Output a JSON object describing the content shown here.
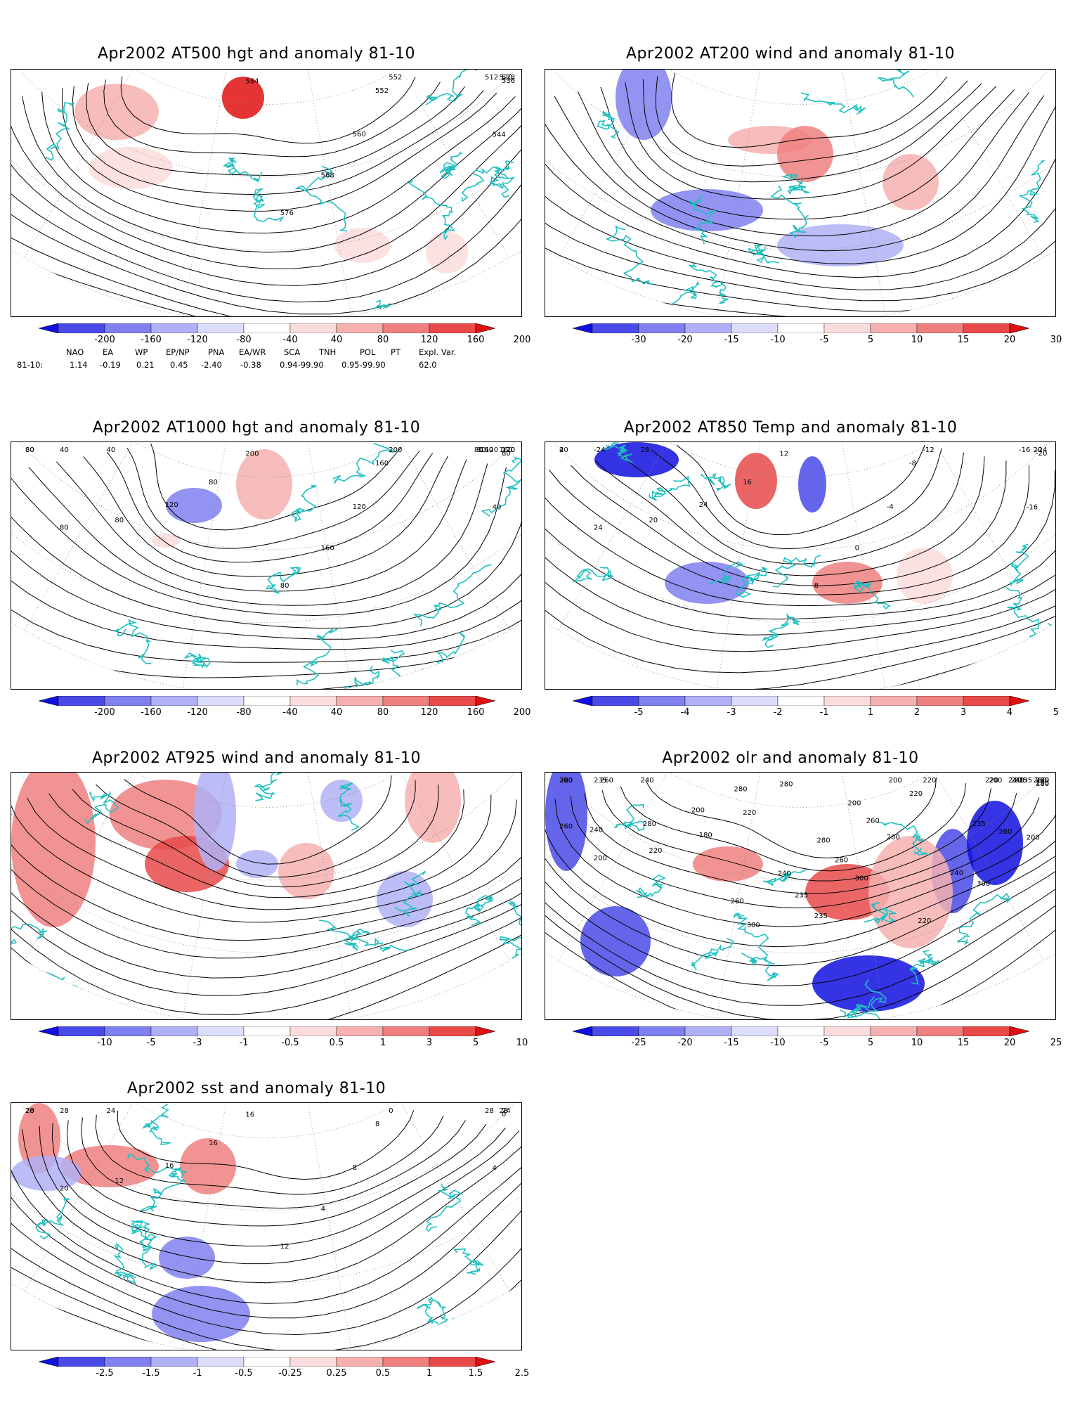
{
  "panels": [
    {
      "id": "p1",
      "title": "Apr2002 AT500 hgt and anomaly 81-10",
      "contour_labels": [
        "512",
        "520",
        "528",
        "536",
        "544",
        "552",
        "552",
        "560",
        "568",
        "576",
        "584"
      ],
      "colorbar": {
        "ticks": [
          "-200",
          "-160",
          "-120",
          "-80",
          "-40",
          "40",
          "80",
          "120",
          "160",
          "200"
        ]
      }
    },
    {
      "id": "p2",
      "title": "Apr2002 AT200 wind and anomaly 81-10",
      "contour_labels": [],
      "colorbar": {
        "ticks": [
          "-30",
          "-20",
          "-15",
          "-10",
          "-5",
          "5",
          "10",
          "15",
          "20",
          "30"
        ]
      }
    },
    {
      "id": "p3",
      "title": "Apr2002 AT1000 hgt and anomaly 81-10",
      "contour_labels": [
        "120",
        "160",
        "120",
        "80",
        "40",
        "200",
        "160",
        "120",
        "160",
        "80",
        "200",
        "80",
        "120",
        "80",
        "80",
        "40",
        "40",
        "80",
        "80",
        "120",
        "80",
        "160",
        "80"
      ],
      "colorbar": {
        "ticks": [
          "-200",
          "-160",
          "-120",
          "-80",
          "-40",
          "40",
          "80",
          "120",
          "160",
          "200"
        ]
      }
    },
    {
      "id": "p4",
      "title": "Apr2002 AT850 Temp and anomaly 81-10",
      "contour_labels": [
        "-16",
        "20",
        "-24",
        "-20",
        "-16",
        "-12",
        "-8",
        "-4",
        "0",
        "8",
        "12",
        "16",
        "24",
        "20",
        "24",
        "28",
        "-24",
        "20",
        "4"
      ],
      "colorbar": {
        "ticks": [
          "-5",
          "-4",
          "-3",
          "-2",
          "-1",
          "1",
          "2",
          "3",
          "4",
          "5"
        ]
      }
    },
    {
      "id": "p5",
      "title": "Apr2002 AT925 wind and anomaly 81-10",
      "contour_labels": [],
      "colorbar": {
        "ticks": [
          "-10",
          "-5",
          "-3",
          "-1",
          "-0.5",
          "0.5",
          "1",
          "3",
          "5",
          "10"
        ]
      }
    },
    {
      "id": "p6",
      "title": "Apr2002 olr and anomaly 81-10",
      "contour_labels": [
        "235",
        "280",
        "160",
        "180",
        "200",
        "220",
        "220",
        "200",
        "300",
        "235",
        "280",
        "220",
        "180",
        "220",
        "200",
        "240",
        "235",
        "220",
        "260",
        "220",
        "240",
        "235",
        "240",
        "260",
        "300",
        "200",
        "260",
        "260",
        "235",
        "300",
        "280",
        "200",
        "280",
        "240",
        "260",
        "260",
        "300",
        "220",
        "200",
        "235",
        "200",
        "220",
        "235",
        "240",
        "220",
        "200",
        "280",
        "240",
        "260"
      ],
      "colorbar": {
        "ticks": [
          "-25",
          "-20",
          "-15",
          "-10",
          "-5",
          "5",
          "10",
          "15",
          "20",
          "25"
        ]
      }
    },
    {
      "id": "p7",
      "title": "Apr2002 sst and anomaly 81-10",
      "contour_labels": [
        "28",
        "28",
        "24",
        "0",
        "4",
        "0",
        "8",
        "8",
        "4",
        "12",
        "16",
        "16",
        "16",
        "12",
        "20",
        "24",
        "28",
        "28",
        "20"
      ],
      "colorbar": {
        "ticks": [
          "-2.5",
          "-1.5",
          "-1",
          "-0.5",
          "-0.25",
          "0.25",
          "0.5",
          "1",
          "1.5",
          "2.5"
        ]
      }
    }
  ],
  "teleconnections": {
    "headers": [
      "NAO",
      "EA",
      "WP",
      "EP/NP",
      "PNA",
      "EA/WR",
      "SCA",
      "TNH",
      "POL",
      "PT",
      "Expl. Var."
    ],
    "row_label": "81-10:",
    "values": [
      "1.14",
      "-0.19",
      "0.21",
      "0.45",
      "-2.40",
      "-0.38",
      "0.94-99.90",
      "0.95-99.90",
      "62.0"
    ]
  },
  "colors": {
    "coast": "#20c0c0",
    "contour": "#000000",
    "blue_scale": [
      "#1010e0",
      "#4a4ae8",
      "#8080f0",
      "#b0b0f6",
      "#dcdcfb"
    ],
    "red_scale": [
      "#fbdcdc",
      "#f6b0b0",
      "#f08080",
      "#e84a4a",
      "#e01010"
    ]
  }
}
